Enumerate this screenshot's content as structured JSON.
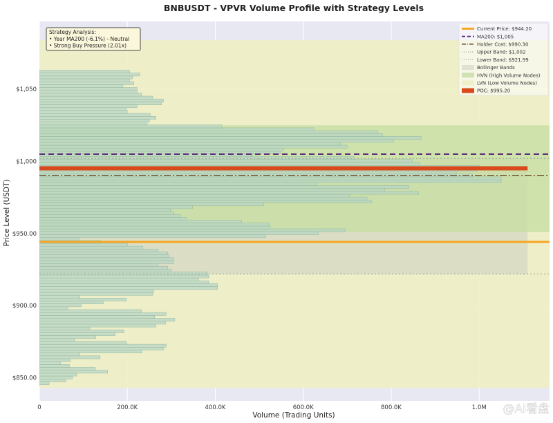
{
  "chart_data": {
    "type": "bar",
    "orientation": "horizontal",
    "title": "BNBUSDT - VPVR Volume Profile with Strategy Levels",
    "xlabel": "Volume (Trading Units)",
    "ylabel": "Price Level (USDT)",
    "xlim": [
      0,
      1160000
    ],
    "ylim": [
      834,
      1097
    ],
    "x_ticks": [
      0,
      200000,
      400000,
      600000,
      800000,
      1000000
    ],
    "x_tick_labels": [
      "0",
      "200.0K",
      "400.0K",
      "600.0K",
      "800.0K",
      "1.0M"
    ],
    "y_ticks": [
      850,
      900,
      950,
      1000,
      1050
    ],
    "y_tick_labels": [
      "$850.00",
      "$900.00",
      "$950.00",
      "$1,000",
      "$1,050"
    ],
    "bar_height": 2.5,
    "bar_color": "#b9d6c4",
    "bar_edge": "#8fb69e",
    "bars": [
      {
        "price": 846,
        "volume": 22000
      },
      {
        "price": 848,
        "volume": 60000
      },
      {
        "price": 850,
        "volume": 75000
      },
      {
        "price": 852,
        "volume": 85000
      },
      {
        "price": 854,
        "volume": 155000
      },
      {
        "price": 856,
        "volume": 127000
      },
      {
        "price": 858,
        "volume": 68000
      },
      {
        "price": 860,
        "volume": 48000
      },
      {
        "price": 862,
        "volume": 70000
      },
      {
        "price": 864,
        "volume": 138000
      },
      {
        "price": 866,
        "volume": 92000
      },
      {
        "price": 868,
        "volume": 233000
      },
      {
        "price": 870,
        "volume": 282000
      },
      {
        "price": 872,
        "volume": 288000
      },
      {
        "price": 874,
        "volume": 198000
      },
      {
        "price": 876,
        "volume": 80000
      },
      {
        "price": 878,
        "volume": 128000
      },
      {
        "price": 880,
        "volume": 172000
      },
      {
        "price": 882,
        "volume": 192000
      },
      {
        "price": 884,
        "volume": 115000
      },
      {
        "price": 886,
        "volume": 265000
      },
      {
        "price": 888,
        "volume": 287000
      },
      {
        "price": 890,
        "volume": 308000
      },
      {
        "price": 892,
        "volume": 262000
      },
      {
        "price": 894,
        "volume": 288000
      },
      {
        "price": 896,
        "volume": 232000
      },
      {
        "price": 898,
        "volume": 65000
      },
      {
        "price": 900,
        "volume": 95000
      },
      {
        "price": 902,
        "volume": 145000
      },
      {
        "price": 904,
        "volume": 198000
      },
      {
        "price": 906,
        "volume": 92000
      },
      {
        "price": 908,
        "volume": 258000
      },
      {
        "price": 910,
        "volume": 260000
      },
      {
        "price": 912,
        "volume": 405000
      },
      {
        "price": 914,
        "volume": 405000
      },
      {
        "price": 916,
        "volume": 385000
      },
      {
        "price": 918,
        "volume": 362000
      },
      {
        "price": 920,
        "volume": 385000
      },
      {
        "price": 922,
        "volume": 382000
      },
      {
        "price": 924,
        "volume": 300000
      },
      {
        "price": 926,
        "volume": 292000
      },
      {
        "price": 928,
        "volume": 270000
      },
      {
        "price": 930,
        "volume": 305000
      },
      {
        "price": 932,
        "volume": 305000
      },
      {
        "price": 934,
        "volume": 295000
      },
      {
        "price": 936,
        "volume": 292000
      },
      {
        "price": 938,
        "volume": 270000
      },
      {
        "price": 940,
        "volume": 235000
      },
      {
        "price": 942,
        "volume": 200000
      },
      {
        "price": 944,
        "volume": 140000
      },
      {
        "price": 946,
        "volume": 90000
      },
      {
        "price": 948,
        "volume": 515000
      },
      {
        "price": 950,
        "volume": 635000
      },
      {
        "price": 952,
        "volume": 695000
      },
      {
        "price": 954,
        "volume": 525000
      },
      {
        "price": 956,
        "volume": 522000
      },
      {
        "price": 958,
        "volume": 460000
      },
      {
        "price": 960,
        "volume": 335000
      },
      {
        "price": 962,
        "volume": 320000
      },
      {
        "price": 964,
        "volume": 305000
      },
      {
        "price": 966,
        "volume": 298000
      },
      {
        "price": 968,
        "volume": 348000
      },
      {
        "price": 970,
        "volume": 510000
      },
      {
        "price": 972,
        "volume": 755000
      },
      {
        "price": 974,
        "volume": 745000
      },
      {
        "price": 976,
        "volume": 705000
      },
      {
        "price": 978,
        "volume": 862000
      },
      {
        "price": 980,
        "volume": 785000
      },
      {
        "price": 982,
        "volume": 840000
      },
      {
        "price": 984,
        "volume": 630000
      },
      {
        "price": 986,
        "volume": 1050000
      },
      {
        "price": 988,
        "volume": 1050000
      },
      {
        "price": 990,
        "volume": 985000
      },
      {
        "price": 992,
        "volume": 948000
      },
      {
        "price": 994,
        "volume": 995000
      },
      {
        "price": 996,
        "volume": 1000000
      },
      {
        "price": 998,
        "volume": 865000
      },
      {
        "price": 1000,
        "volume": 848000
      },
      {
        "price": 1002,
        "volume": 715000
      },
      {
        "price": 1004,
        "volume": 485000
      },
      {
        "price": 1006,
        "volume": 548000
      },
      {
        "price": 1008,
        "volume": 555000
      },
      {
        "price": 1010,
        "volume": 700000
      },
      {
        "price": 1012,
        "volume": 685000
      },
      {
        "price": 1014,
        "volume": 805000
      },
      {
        "price": 1016,
        "volume": 868000
      },
      {
        "price": 1018,
        "volume": 780000
      },
      {
        "price": 1020,
        "volume": 770000
      },
      {
        "price": 1022,
        "volume": 625000
      },
      {
        "price": 1024,
        "volume": 415000
      },
      {
        "price": 1026,
        "volume": 245000
      },
      {
        "price": 1028,
        "volume": 250000
      },
      {
        "price": 1030,
        "volume": 265000
      },
      {
        "price": 1032,
        "volume": 252000
      },
      {
        "price": 1034,
        "volume": 200000
      },
      {
        "price": 1036,
        "volume": 198000
      },
      {
        "price": 1038,
        "volume": 222000
      },
      {
        "price": 1040,
        "volume": 278000
      },
      {
        "price": 1042,
        "volume": 282000
      },
      {
        "price": 1044,
        "volume": 258000
      },
      {
        "price": 1046,
        "volume": 232000
      },
      {
        "price": 1048,
        "volume": 222000
      },
      {
        "price": 1050,
        "volume": 222000
      },
      {
        "price": 1052,
        "volume": 190000
      },
      {
        "price": 1054,
        "volume": 215000
      },
      {
        "price": 1056,
        "volume": 205000
      },
      {
        "price": 1058,
        "volume": 212000
      },
      {
        "price": 1060,
        "volume": 228000
      },
      {
        "price": 1062,
        "volume": 205000
      },
      {
        "price": 1064,
        "volume": 0
      }
    ],
    "zones": [
      {
        "kind": "lvn",
        "from": 843,
        "to": 1084,
        "color": "#eeeec4"
      },
      {
        "kind": "bollinger",
        "from": 922,
        "to": 1002,
        "color": "#d8dcc4"
      },
      {
        "kind": "hvn",
        "from": 951,
        "to": 1025,
        "color": "#c9dfa6"
      }
    ],
    "hlines": [
      {
        "key": "current",
        "y": 944.2,
        "color": "#f5a623",
        "width": 3,
        "dash": ""
      },
      {
        "key": "ma200",
        "y": 1005,
        "color": "#5b2a7a",
        "width": 2,
        "dash": "8,5"
      },
      {
        "key": "holder",
        "y": 990.3,
        "color": "#6b4a2a",
        "width": 1.4,
        "dash": "10,3,2,3"
      },
      {
        "key": "upper",
        "y": 1002,
        "color": "#9aa79a",
        "width": 1.2,
        "dash": "2,3"
      },
      {
        "key": "lower",
        "y": 921.99,
        "color": "#9aa79a",
        "width": 1.2,
        "dash": "2,3"
      },
      {
        "key": "poc",
        "y": 995.2,
        "color": "#d84a1b",
        "width": 6,
        "dash": ""
      }
    ],
    "poc_volume": 1110000,
    "legend": [
      {
        "label": "Current Price: $944.20",
        "kind": "line",
        "color": "#f5a623",
        "dash": "",
        "width": 3
      },
      {
        "label": "MA200: $1,005",
        "kind": "line",
        "color": "#5b2a7a",
        "dash": "5,3",
        "width": 2
      },
      {
        "label": "Holder Cost: $990.30",
        "kind": "line",
        "color": "#6b4a2a",
        "dash": "6,2,1,2",
        "width": 1.5
      },
      {
        "label": "Upper Band: $1,002",
        "kind": "line",
        "color": "#9aa79a",
        "dash": "1,2",
        "width": 1.2
      },
      {
        "label": "Lower Band: $921.99",
        "kind": "line",
        "color": "#9aa79a",
        "dash": "1,2",
        "width": 1.2
      },
      {
        "label": "Bollinger Bands",
        "kind": "patch",
        "color": "#e0e1cf"
      },
      {
        "label": "HVN (High Volume Nodes)",
        "kind": "patch",
        "color": "#cfe2b0"
      },
      {
        "label": "LVN (Low Volume Nodes)",
        "kind": "patch",
        "color": "#f1efc8"
      },
      {
        "label": "POC: $995.20",
        "kind": "patch",
        "color": "#d84a1b"
      }
    ],
    "legend_position": "top-right",
    "annotation": {
      "title": "Strategy Analysis:",
      "lines": [
        "• Year MA200 (-6.1%) - Neutral",
        "• Strong Buy Pressure (2.01x)"
      ]
    },
    "grid": true,
    "background": "#e8e8f2"
  },
  "watermark": "@AI看盘"
}
